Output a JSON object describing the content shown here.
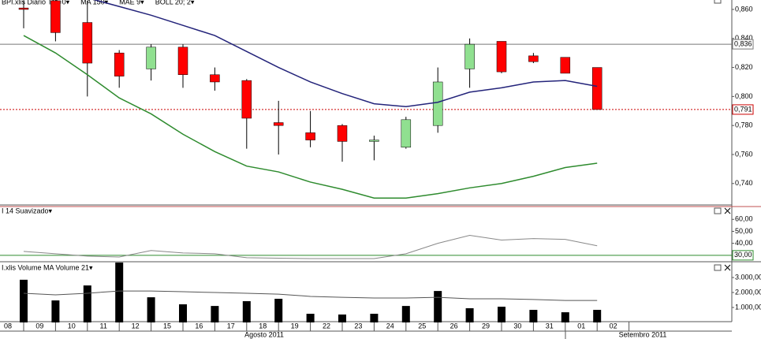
{
  "chart_data": [
    {
      "type": "candlestick",
      "legend": [
        {
          "label": "BPI.xlis Diario TM=0▾",
          "color": "#000000"
        },
        {
          "label": "MA 150▾",
          "color": "#e000e0"
        },
        {
          "label": "MAE 9▾",
          "color": "#23237a"
        },
        {
          "label": "BOLL 20; 2▾",
          "color": "#e00000"
        }
      ],
      "categories": [
        "08",
        "09",
        "10",
        "11",
        "12",
        "15",
        "16",
        "17",
        "18",
        "19",
        "22",
        "23",
        "24",
        "25",
        "26",
        "29",
        "30",
        "31",
        "01",
        "02"
      ],
      "months": [
        "Agosto 2011",
        "Setembro 2011"
      ],
      "open": [
        0.861,
        0.866,
        0.851,
        0.83,
        0.819,
        0.834,
        0.815,
        0.811,
        0.782,
        0.775,
        0.78,
        0.769,
        0.765,
        0.78,
        0.819,
        0.838,
        0.828,
        0.827,
        0.82,
        null
      ],
      "high": [
        0.866,
        0.867,
        0.866,
        0.832,
        0.836,
        0.836,
        0.82,
        0.812,
        0.797,
        0.79,
        0.781,
        0.773,
        0.786,
        0.82,
        0.84,
        0.838,
        0.83,
        0.827,
        0.82,
        null
      ],
      "low": [
        0.847,
        0.838,
        0.8,
        0.806,
        0.811,
        0.806,
        0.804,
        0.764,
        0.76,
        0.765,
        0.755,
        0.756,
        0.764,
        0.775,
        0.806,
        0.816,
        0.823,
        0.816,
        0.791,
        null
      ],
      "close": [
        0.86,
        0.844,
        0.823,
        0.814,
        0.834,
        0.815,
        0.81,
        0.785,
        0.78,
        0.77,
        0.769,
        0.77,
        0.784,
        0.81,
        0.836,
        0.817,
        0.824,
        0.816,
        0.791,
        null
      ],
      "up_color": "#90e090",
      "down_color": "#ff0000",
      "series": [
        {
          "color": "#23237a",
          "values": [
            null,
            null,
            0.868,
            0.862,
            0.856,
            0.849,
            0.842,
            0.831,
            0.82,
            0.81,
            0.802,
            0.795,
            0.793,
            0.796,
            0.803,
            0.806,
            0.81,
            0.811,
            0.807,
            null
          ]
        },
        {
          "color": "#2e8b2e",
          "values": [
            0.842,
            0.83,
            0.815,
            0.799,
            0.788,
            0.774,
            0.762,
            0.752,
            0.748,
            0.741,
            0.736,
            0.73,
            0.73,
            0.733,
            0.737,
            0.74,
            0.745,
            0.751,
            0.754,
            null
          ]
        }
      ],
      "lines": [
        {
          "value": 0.836,
          "label": "0,836",
          "color": "#777777",
          "style": "solid"
        },
        {
          "value": 0.791,
          "label": "0,791",
          "color": "#cc0000",
          "style": "dotted"
        }
      ],
      "ylim": [
        0.7263,
        0.8665
      ],
      "yticks": [
        {
          "value": 0.86,
          "label": "0,860"
        },
        {
          "value": 0.84,
          "label": "0,840"
        },
        {
          "value": 0.82,
          "label": "0,820"
        },
        {
          "value": 0.8,
          "label": "0,800"
        },
        {
          "value": 0.78,
          "label": "0,780"
        },
        {
          "value": 0.76,
          "label": "0,760"
        },
        {
          "value": 0.74,
          "label": "0,740"
        }
      ]
    },
    {
      "type": "line",
      "title": "I 14 Suavizado▾",
      "series": [
        {
          "color": "#888888",
          "values": [
            33.3,
            31.3,
            29.3,
            28.6,
            34,
            32,
            31.3,
            28,
            27.6,
            27.3,
            27.3,
            27.3,
            31.3,
            40,
            46.7,
            42.7,
            44,
            43.3,
            38,
            null
          ]
        }
      ],
      "lines": [
        {
          "value": 30,
          "label": "30,00",
          "color": "#2e8b2e",
          "style": "solid"
        }
      ],
      "ylim": [
        25.3,
        70.7
      ],
      "yticks": [
        {
          "value": 60,
          "label": "60,00"
        },
        {
          "value": 50,
          "label": "50,00"
        },
        {
          "value": 40,
          "label": "40,00"
        }
      ]
    },
    {
      "type": "bar",
      "title": "I.xlis Volume   MA Volume 21▾",
      "color": "#000000",
      "values": [
        2850,
        1470,
        2470,
        4000,
        1680,
        1210,
        1100,
        1420,
        1580,
        580,
        530,
        580,
        1100,
        2100,
        950,
        1050,
        840,
        680,
        840,
        null
      ],
      "series": [
        {
          "color": "#555555",
          "values": [
            1950,
            1840,
            1950,
            2100,
            2100,
            2050,
            2000,
            1950,
            1890,
            1740,
            1680,
            1630,
            1630,
            1680,
            1580,
            1580,
            1530,
            1470,
            1470,
            null
          ]
        }
      ],
      "ylim": [
        0,
        4000
      ],
      "yticks": [
        {
          "value": 3000,
          "label": "3.000,00"
        },
        {
          "value": 2000,
          "label": "2.000,00"
        },
        {
          "value": 1000,
          "label": "1.000,00"
        }
      ]
    }
  ]
}
